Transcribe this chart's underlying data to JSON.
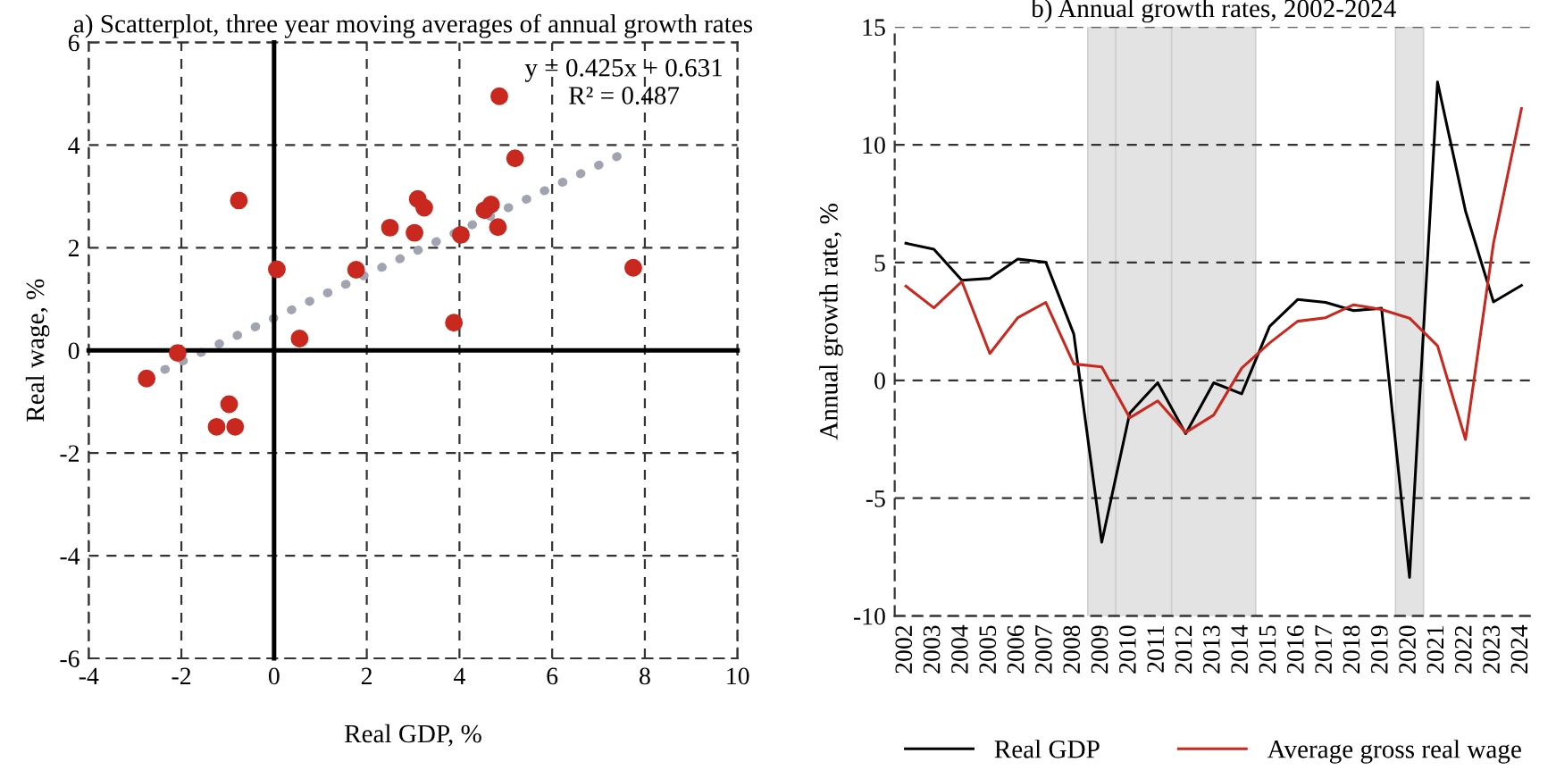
{
  "chart_data": [
    {
      "type": "scatter",
      "title": "a) Scatterplot, three year moving averages of annual growth rates",
      "xlabel": "Real GDP, %",
      "ylabel": "Real wage, %",
      "x": [
        4.86,
        5.2,
        -0.76,
        3.1,
        3.24,
        2.5,
        3.03,
        4.54,
        4.68,
        4.83,
        4.03,
        0.06,
        1.77,
        7.75,
        3.88,
        0.55,
        -2.08,
        -2.75,
        -0.97,
        -1.24,
        -0.84
      ],
      "series": [
        {
          "color": "#c8281e",
          "marker": "circle",
          "values": [
            4.95,
            3.74,
            2.92,
            2.95,
            2.78,
            2.39,
            2.29,
            2.73,
            2.84,
            2.4,
            2.25,
            1.58,
            1.57,
            1.61,
            0.54,
            0.23,
            -0.05,
            -0.55,
            -1.05,
            -1.49,
            -1.49
          ]
        },
        {
          "type": "line",
          "color": "#a0a4b0",
          "line_style": "dotted",
          "x": [
            -2.75,
            7.6
          ],
          "values": [
            -0.54,
            3.86
          ]
        }
      ],
      "annotations": [
        "y = 0.425x + 0.631",
        "R² = 0.487"
      ],
      "xlim": [
        -4,
        10
      ],
      "xticks": [
        -4,
        -2,
        0,
        2,
        4,
        6,
        8,
        10
      ],
      "ylim": [
        -6,
        6
      ],
      "yticks": [
        -6,
        -4,
        -2,
        0,
        2,
        4,
        6
      ],
      "grid": true,
      "legend": false
    },
    {
      "type": "line",
      "title": "b) Annual growth rates, 2002-2024",
      "ylabel": "Annual growth rate, %",
      "x": [
        2002,
        2003,
        2004,
        2005,
        2006,
        2007,
        2008,
        2009,
        2010,
        2011,
        2012,
        2013,
        2014,
        2015,
        2016,
        2017,
        2018,
        2019,
        2020,
        2021,
        2022,
        2023,
        2024
      ],
      "series": [
        {
          "name": "Real GDP",
          "color": "#000000",
          "values": [
            5.82,
            5.57,
            4.25,
            4.33,
            5.15,
            5.02,
            1.97,
            -6.87,
            -1.39,
            -0.1,
            -2.26,
            -0.1,
            -0.57,
            2.29,
            3.43,
            3.31,
            2.96,
            3.06,
            -8.36,
            12.66,
            7.19,
            3.33,
            4.03
          ]
        },
        {
          "name": "Average gross real wage",
          "color": "#c8281e",
          "values": [
            4.0,
            3.08,
            4.2,
            1.14,
            2.66,
            3.31,
            0.7,
            0.57,
            -1.59,
            -0.87,
            -2.21,
            -1.47,
            0.52,
            1.59,
            2.51,
            2.66,
            3.21,
            3.01,
            2.64,
            1.47,
            -2.51,
            5.82,
            11.54
          ]
        }
      ],
      "bands": [
        {
          "axis": "x",
          "from": 2008.5,
          "to": 2009.5,
          "color": "#e3e3e3"
        },
        {
          "axis": "x",
          "from": 2009.5,
          "to": 2011.5,
          "color": "#e3e3e3"
        },
        {
          "axis": "x",
          "from": 2011.5,
          "to": 2014.5,
          "color": "#e3e3e3"
        },
        {
          "axis": "x",
          "from": 2019.5,
          "to": 2020.5,
          "color": "#e3e3e3"
        }
      ],
      "xlim": [
        2001.6,
        2024.4
      ],
      "xticks": [
        2002,
        2003,
        2004,
        2005,
        2006,
        2007,
        2008,
        2009,
        2010,
        2011,
        2012,
        2013,
        2014,
        2015,
        2016,
        2017,
        2018,
        2019,
        2020,
        2021,
        2022,
        2023,
        2024
      ],
      "ylim": [
        -10,
        15
      ],
      "yticks": [
        -10,
        -5,
        0,
        5,
        10,
        15
      ],
      "grid": "y",
      "legend": "bottom",
      "marker": "none",
      "line_style": "solid"
    }
  ]
}
